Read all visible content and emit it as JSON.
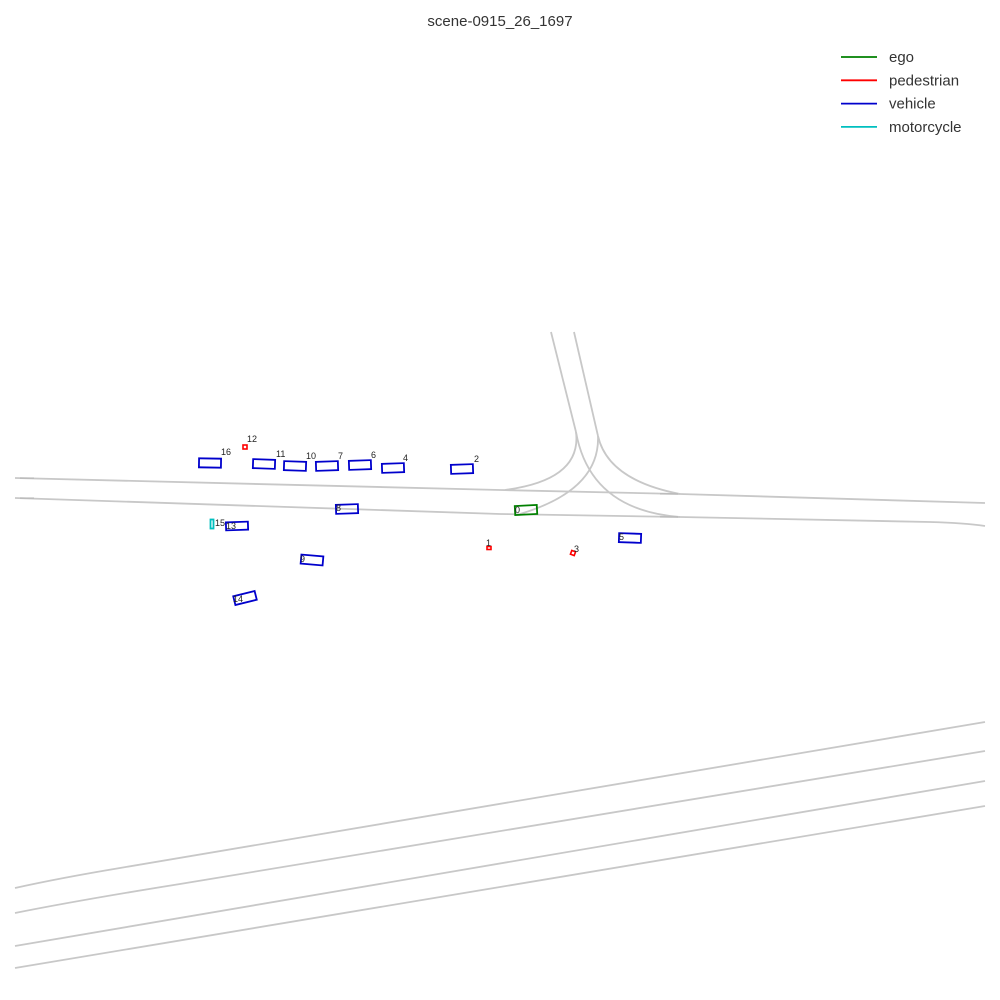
{
  "title": "scene-0915_26_1697",
  "legend": [
    {
      "label": "ego",
      "color": "#008000"
    },
    {
      "label": "pedestrian",
      "color": "#ff0000"
    },
    {
      "label": "vehicle",
      "color": "#0000cc"
    },
    {
      "label": "motorcycle",
      "color": "#00bfbf"
    }
  ],
  "agents": [
    {
      "id": "0",
      "type": "ego"
    },
    {
      "id": "1",
      "type": "pedestrian"
    },
    {
      "id": "2",
      "type": "vehicle"
    },
    {
      "id": "3",
      "type": "pedestrian"
    },
    {
      "id": "4",
      "type": "vehicle"
    },
    {
      "id": "5",
      "type": "vehicle"
    },
    {
      "id": "6",
      "type": "vehicle"
    },
    {
      "id": "7",
      "type": "vehicle"
    },
    {
      "id": "8",
      "type": "vehicle"
    },
    {
      "id": "9",
      "type": "vehicle"
    },
    {
      "id": "10",
      "type": "vehicle"
    },
    {
      "id": "11",
      "type": "vehicle"
    },
    {
      "id": "12",
      "type": "pedestrian"
    },
    {
      "id": "13",
      "type": "vehicle"
    },
    {
      "id": "14",
      "type": "vehicle"
    },
    {
      "id": "15",
      "type": "motorcycle"
    },
    {
      "id": "16",
      "type": "vehicle"
    }
  ]
}
